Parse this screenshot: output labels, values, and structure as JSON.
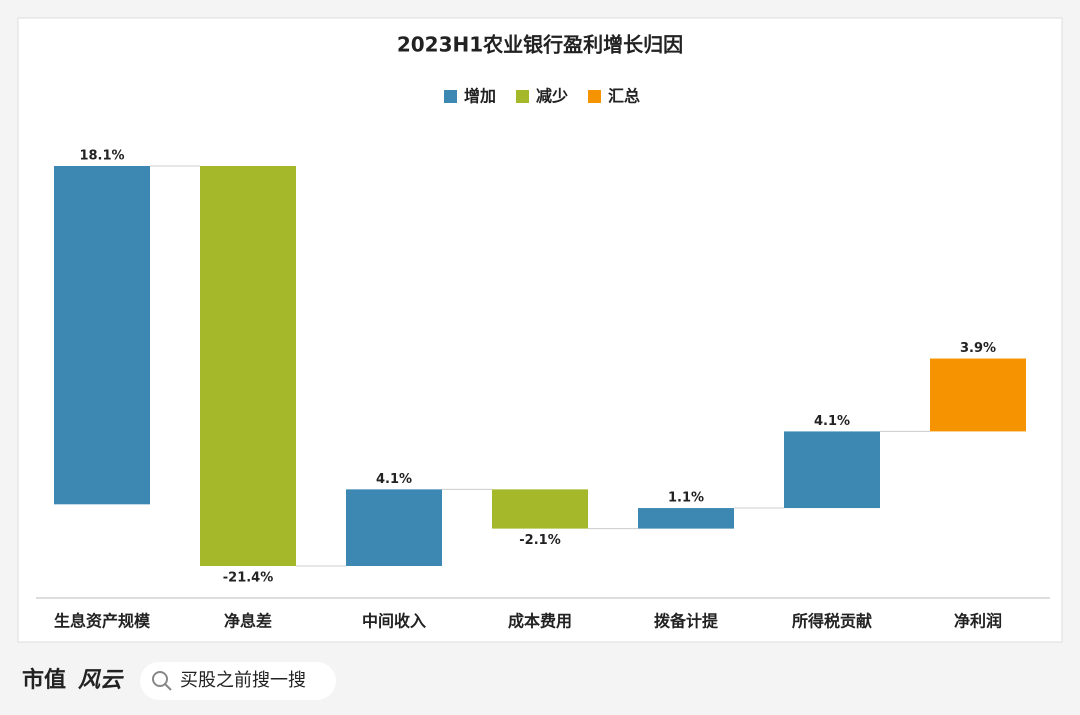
{
  "chart_data": {
    "type": "waterfall",
    "title": "2023H1农业银行盈利增长归因",
    "categories": [
      "生息资产规模",
      "净息差",
      "中间收入",
      "成本费用",
      "拨备计提",
      "所得税贡献",
      "净利润"
    ],
    "series": [
      {
        "name": "增加",
        "color": "#3d87b3",
        "values": [
          18.1,
          null,
          4.1,
          null,
          1.1,
          4.1,
          null
        ],
        "value_labels": [
          "18.1%",
          null,
          "4.1%",
          null,
          "1.1%",
          "4.1%",
          null
        ]
      },
      {
        "name": "减少",
        "color": "#a5b82a",
        "values": [
          null,
          -21.4,
          null,
          -2.1,
          null,
          null,
          null
        ],
        "value_labels": [
          null,
          "-21.4%",
          null,
          "-2.1%",
          null,
          null,
          null
        ]
      },
      {
        "name": "汇总",
        "color": "#f59300",
        "values": [
          null,
          null,
          null,
          null,
          null,
          null,
          3.9
        ],
        "value_labels": [
          null,
          null,
          null,
          null,
          null,
          null,
          "3.9%"
        ]
      }
    ],
    "legend": "top"
  },
  "footer": {
    "brand": "市值",
    "logo": "风云",
    "search": "买股之前搜一搜"
  }
}
